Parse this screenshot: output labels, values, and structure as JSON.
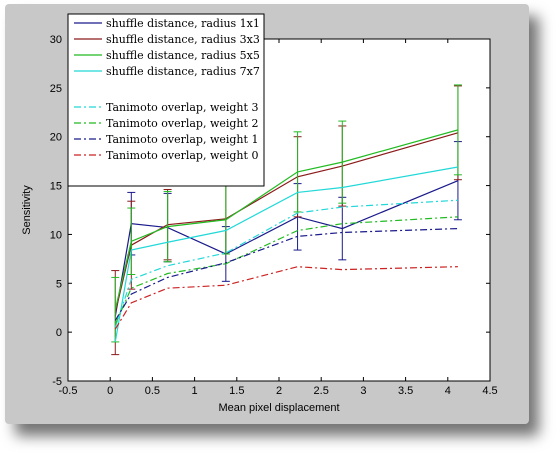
{
  "chart_data": {
    "type": "line",
    "title": "",
    "xlabel": "Mean pixel displacement",
    "ylabel": "Sensitivity",
    "xlim": [
      -0.5,
      4.5
    ],
    "ylim": [
      -5,
      30
    ],
    "xticks": [
      "-0.5",
      "0",
      "0.5",
      "1",
      "1.5",
      "2",
      "2.5",
      "3",
      "3.5",
      "4",
      "4.5"
    ],
    "yticks": [
      "-5",
      "0",
      "5",
      "10",
      "15",
      "20",
      "25",
      "30"
    ],
    "grid": false,
    "legend_position": "top-left",
    "series": [
      {
        "name": "shuffle distance, radius 1x1",
        "color": "#1a1a8c",
        "dash": "solid",
        "x": [
          0.06,
          0.25,
          0.68,
          1.37,
          2.22,
          2.75,
          4.12
        ],
        "y": [
          1.6,
          11.1,
          10.7,
          8.0,
          11.8,
          10.6,
          15.5
        ],
        "err": [
          null,
          3.2,
          3.5,
          2.8,
          3.4,
          3.2,
          4.0
        ]
      },
      {
        "name": "shuffle distance, radius 3x3",
        "color": "#8b1a1a",
        "dash": "solid",
        "x": [
          0.06,
          0.25,
          0.68,
          1.37,
          2.22,
          2.75,
          4.12
        ],
        "y": [
          2.0,
          8.9,
          11.0,
          11.6,
          15.9,
          17.0,
          20.4
        ],
        "err": [
          4.3,
          4.5,
          3.6,
          3.6,
          4.1,
          4.1,
          4.8
        ]
      },
      {
        "name": "shuffle distance, radius 5x5",
        "color": "#22bb22",
        "dash": "solid",
        "x": [
          0.06,
          0.25,
          0.68,
          1.37,
          2.22,
          2.75,
          4.12
        ],
        "y": [
          2.3,
          9.3,
          10.8,
          11.5,
          16.4,
          17.4,
          20.7
        ],
        "err": [
          3.3,
          3.4,
          3.6,
          3.5,
          4.1,
          4.2,
          4.6
        ]
      },
      {
        "name": "shuffle distance, radius 7x7",
        "color": "#22d8d8",
        "dash": "solid",
        "x": [
          0.06,
          0.25,
          0.68,
          1.37,
          2.22,
          2.75,
          4.12
        ],
        "y": [
          -1.0,
          8.4,
          9.2,
          10.4,
          14.3,
          14.8,
          16.9
        ],
        "err": [
          null,
          null,
          null,
          null,
          null,
          null,
          null
        ]
      },
      {
        "name": "Tanimoto overlap, weight 3",
        "color": "#22d8d8",
        "dash": "dashdot",
        "x": [
          0.06,
          0.25,
          0.68,
          1.37,
          2.22,
          2.75,
          4.12
        ],
        "y": [
          0.5,
          5.4,
          6.8,
          8.1,
          12.2,
          12.8,
          13.5
        ],
        "err": [
          null,
          null,
          null,
          null,
          null,
          null,
          null
        ]
      },
      {
        "name": "Tanimoto overlap, weight 2",
        "color": "#22bb22",
        "dash": "dashdot",
        "x": [
          0.06,
          0.25,
          0.68,
          1.37,
          2.22,
          2.75,
          4.12
        ],
        "y": [
          0.8,
          4.5,
          6.0,
          7.0,
          10.4,
          11.1,
          11.8
        ],
        "err": [
          null,
          null,
          null,
          null,
          null,
          null,
          null
        ]
      },
      {
        "name": "Tanimoto overlap, weight 1",
        "color": "#1a1a8c",
        "dash": "dashdot",
        "x": [
          0.06,
          0.25,
          0.68,
          1.37,
          2.22,
          2.75,
          4.12
        ],
        "y": [
          1.2,
          3.9,
          5.6,
          7.1,
          9.8,
          10.2,
          10.6
        ],
        "err": [
          null,
          null,
          null,
          null,
          null,
          null,
          null
        ]
      },
      {
        "name": "Tanimoto overlap, weight 0",
        "color": "#cc2222",
        "dash": "dashdot",
        "x": [
          0.06,
          0.25,
          0.68,
          1.37,
          2.22,
          2.75,
          4.12
        ],
        "y": [
          0.3,
          3.0,
          4.5,
          4.8,
          6.7,
          6.4,
          6.7
        ],
        "err": [
          null,
          null,
          null,
          null,
          null,
          null,
          null
        ]
      }
    ]
  }
}
